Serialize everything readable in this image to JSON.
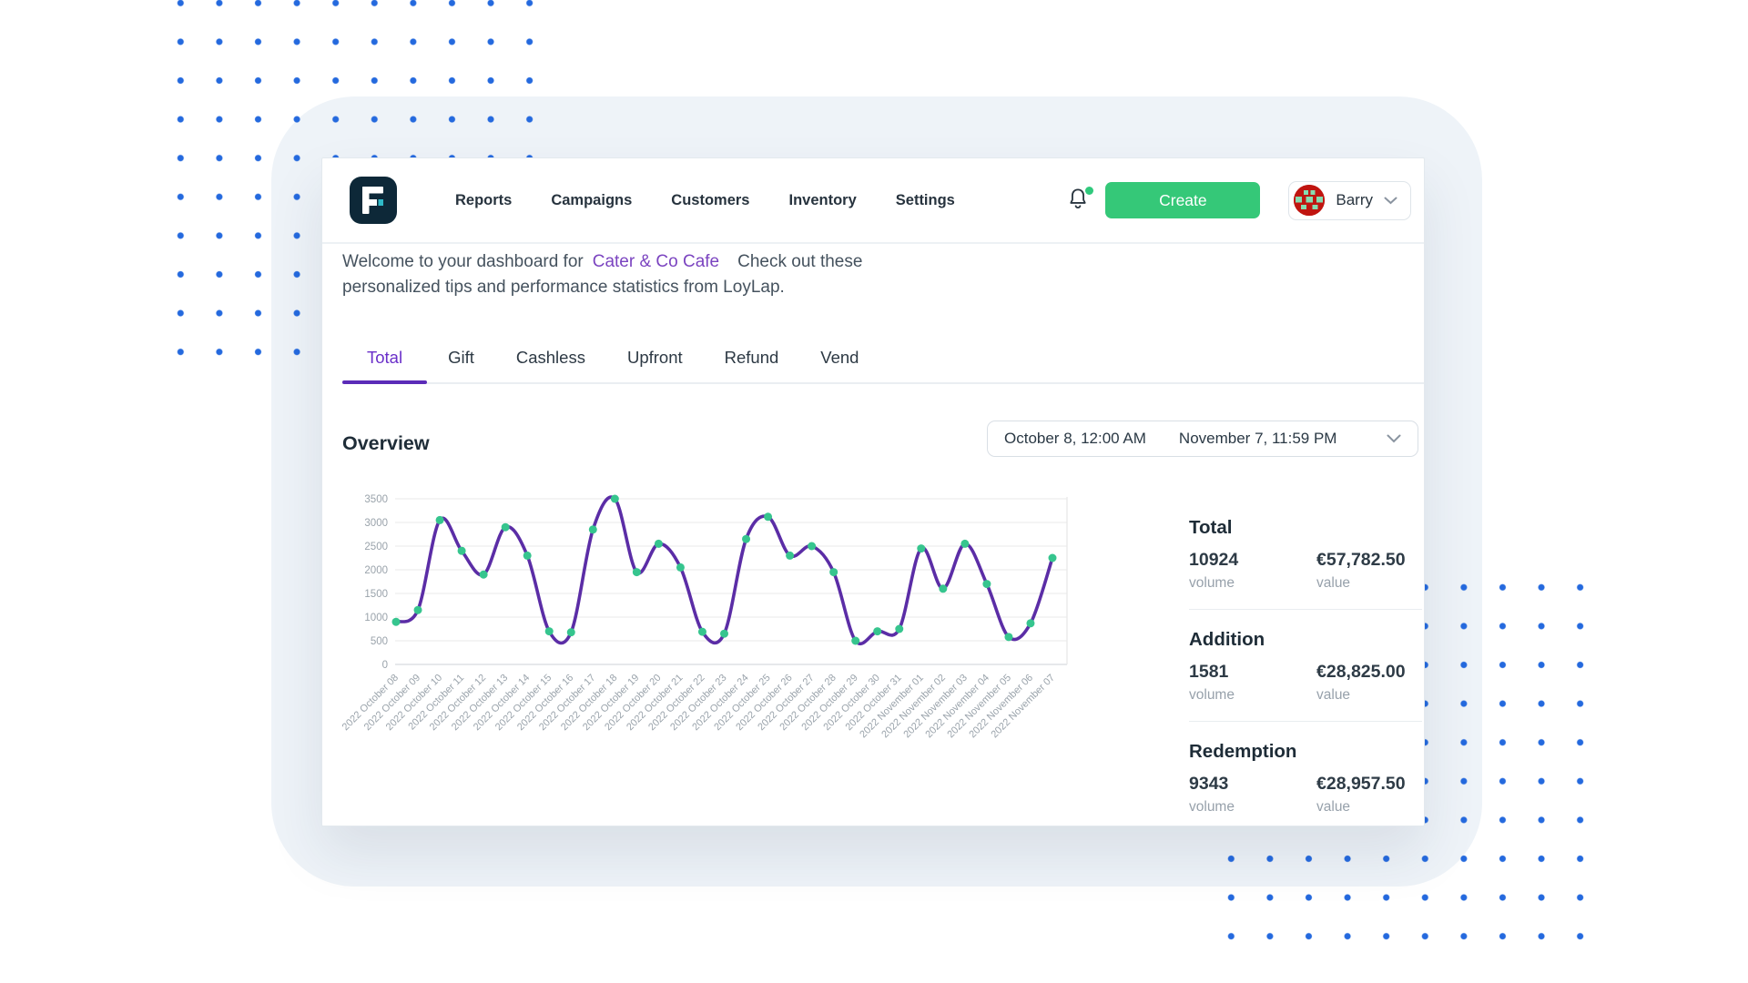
{
  "nav": {
    "items": [
      "Reports",
      "Campaigns",
      "Customers",
      "Inventory",
      "Settings"
    ]
  },
  "header": {
    "create_label": "Create",
    "user_name": "Barry"
  },
  "welcome": {
    "before": "Welcome to your dashboard for",
    "merchant": "Cater & Co Cafe",
    "after": "Check out these personalized tips and performance statistics from LoyLap."
  },
  "tabs": {
    "items": [
      "Total",
      "Gift",
      "Cashless",
      "Upfront",
      "Refund",
      "Vend"
    ],
    "active": "Total"
  },
  "overview": {
    "title": "Overview",
    "date_start": "October 8, 12:00 AM",
    "date_end": "November 7, 11:59 PM"
  },
  "stats": [
    {
      "title": "Total",
      "volume": "10924",
      "volume_label": "volume",
      "value": "€57,782.50",
      "value_label": "value"
    },
    {
      "title": "Addition",
      "volume": "1581",
      "volume_label": "volume",
      "value": "€28,825.00",
      "value_label": "value"
    },
    {
      "title": "Redemption",
      "volume": "9343",
      "volume_label": "volume",
      "value": "€28,957.50",
      "value_label": "value"
    }
  ],
  "colors": {
    "accent_purple": "#5b2bb8",
    "link_purple": "#7b44c0",
    "create_green": "#35c878",
    "notification_green": "#2fc97c",
    "dot_blue": "#2469de",
    "background_tint": "#eef3f8"
  },
  "chart_data": {
    "type": "line",
    "title": "Overview",
    "legend": "none",
    "grid": "horizontal",
    "ylim": [
      0,
      3500
    ],
    "ytick_step": 500,
    "line_color": "#5b2da6",
    "point_color": "#36c58e",
    "axis_text_color": "#9aa3ab",
    "categories": [
      "2022 October 08",
      "2022 October 09",
      "2022 October 10",
      "2022 October 11",
      "2022 October 12",
      "2022 October 13",
      "2022 October 14",
      "2022 October 15",
      "2022 October 16",
      "2022 October 17",
      "2022 October 18",
      "2022 October 19",
      "2022 October 20",
      "2022 October 21",
      "2022 October 22",
      "2022 October 23",
      "2022 October 24",
      "2022 October 25",
      "2022 October 26",
      "2022 October 27",
      "2022 October 28",
      "2022 October 29",
      "2022 October 30",
      "2022 October 31",
      "2022 November 01",
      "2022 November 02",
      "2022 November 03",
      "2022 November 04",
      "2022 November 05",
      "2022 November 06",
      "2022 November 07"
    ],
    "series": [
      {
        "name": "Total",
        "values": [
          900,
          1150,
          3050,
          2400,
          1900,
          2900,
          2300,
          700,
          680,
          2850,
          3500,
          1950,
          2550,
          2050,
          690,
          650,
          2650,
          3120,
          2300,
          2500,
          1950,
          500,
          700,
          750,
          2450,
          1600,
          2550,
          1700,
          580,
          870,
          2250
        ]
      }
    ]
  }
}
